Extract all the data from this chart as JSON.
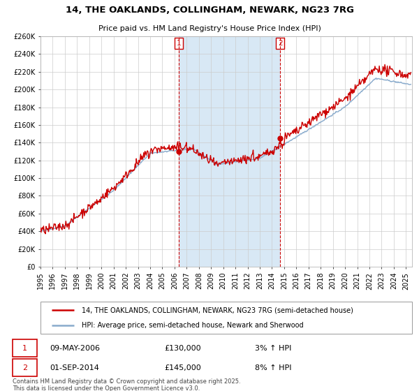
{
  "title": "14, THE OAKLANDS, COLLINGHAM, NEWARK, NG23 7RG",
  "subtitle": "Price paid vs. HM Land Registry's House Price Index (HPI)",
  "hpi_label": "HPI: Average price, semi-detached house, Newark and Sherwood",
  "price_label": "14, THE OAKLANDS, COLLINGHAM, NEWARK, NG23 7RG (semi-detached house)",
  "price_color": "#cc0000",
  "hpi_color": "#88aacc",
  "shade_color": "#d8e8f5",
  "bg_color": "#ffffff",
  "grid_color": "#cccccc",
  "ylim": [
    0,
    260000
  ],
  "yticks": [
    0,
    20000,
    40000,
    60000,
    80000,
    100000,
    120000,
    140000,
    160000,
    180000,
    200000,
    220000,
    240000,
    260000
  ],
  "sale1_date": "09-MAY-2006",
  "sale1_price": 130000,
  "sale1_label": "3% ↑ HPI",
  "sale1_year": 2006.36,
  "sale2_date": "01-SEP-2014",
  "sale2_price": 145000,
  "sale2_label": "8% ↑ HPI",
  "sale2_year": 2014.67,
  "footer": "Contains HM Land Registry data © Crown copyright and database right 2025.\nThis data is licensed under the Open Government Licence v3.0.",
  "x_start": 1995.0,
  "x_end": 2025.5,
  "xticks": [
    1995,
    1996,
    1997,
    1998,
    1999,
    2000,
    2001,
    2002,
    2003,
    2004,
    2005,
    2006,
    2007,
    2008,
    2009,
    2010,
    2011,
    2012,
    2013,
    2014,
    2015,
    2016,
    2017,
    2018,
    2019,
    2020,
    2021,
    2022,
    2023,
    2024,
    2025
  ]
}
